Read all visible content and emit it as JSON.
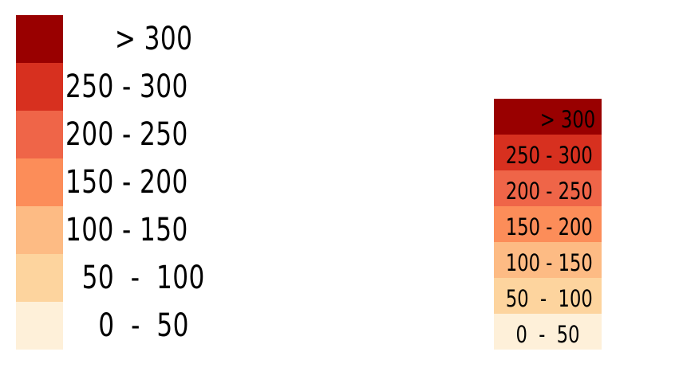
{
  "legend_large": {
    "items": [
      {
        "label": "      > 300",
        "color": "#990000"
      },
      {
        "label": "250 - 300",
        "color": "#d7301f"
      },
      {
        "label": "200 - 250",
        "color": "#ef6548"
      },
      {
        "label": "150 - 200",
        "color": "#fc8d59"
      },
      {
        "label": "100 - 150",
        "color": "#fdbb84"
      },
      {
        "label": "  50  -  100",
        "color": "#fdd49e"
      },
      {
        "label": "    0  -  50",
        "color": "#fef0d9"
      }
    ]
  },
  "legend_small": {
    "items": [
      {
        "label": "> 300",
        "color": "#990000"
      },
      {
        "label": "250 - 300",
        "color": "#d7301f"
      },
      {
        "label": "200 - 250",
        "color": "#ef6548"
      },
      {
        "label": "150 - 200",
        "color": "#fc8d59"
      },
      {
        "label": "100 - 150",
        "color": "#fdbb84"
      },
      {
        "label": "50  -  100",
        "color": "#fdd49e"
      },
      {
        "label": "0  -  50",
        "color": "#fef0d9"
      }
    ]
  }
}
